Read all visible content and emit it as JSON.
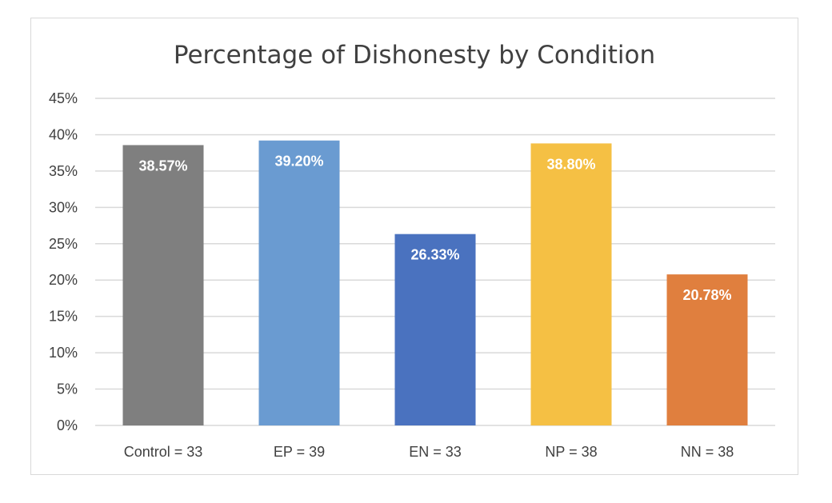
{
  "chart_data": {
    "type": "bar",
    "title": "Percentage of Dishonesty by Condition",
    "xlabel": "",
    "ylabel": "",
    "categories": [
      "Control = 33",
      "EP = 39",
      "EN = 33",
      "NP = 38",
      "NN = 38"
    ],
    "values": [
      38.57,
      39.2,
      26.33,
      38.8,
      20.78
    ],
    "data_labels": [
      "38.57%",
      "39.20%",
      "26.33%",
      "38.80%",
      "20.78%"
    ],
    "bar_colors": [
      "#7f7f7f",
      "#6a9bd1",
      "#4a72bf",
      "#f5c044",
      "#e07f3e"
    ],
    "ylim": [
      0,
      45
    ],
    "yticks": [
      0,
      5,
      10,
      15,
      20,
      25,
      30,
      35,
      40,
      45
    ],
    "ytick_labels": [
      "0%",
      "5%",
      "10%",
      "15%",
      "20%",
      "25%",
      "30%",
      "35%",
      "40%",
      "45%"
    ],
    "grid": true,
    "legend": "none"
  }
}
